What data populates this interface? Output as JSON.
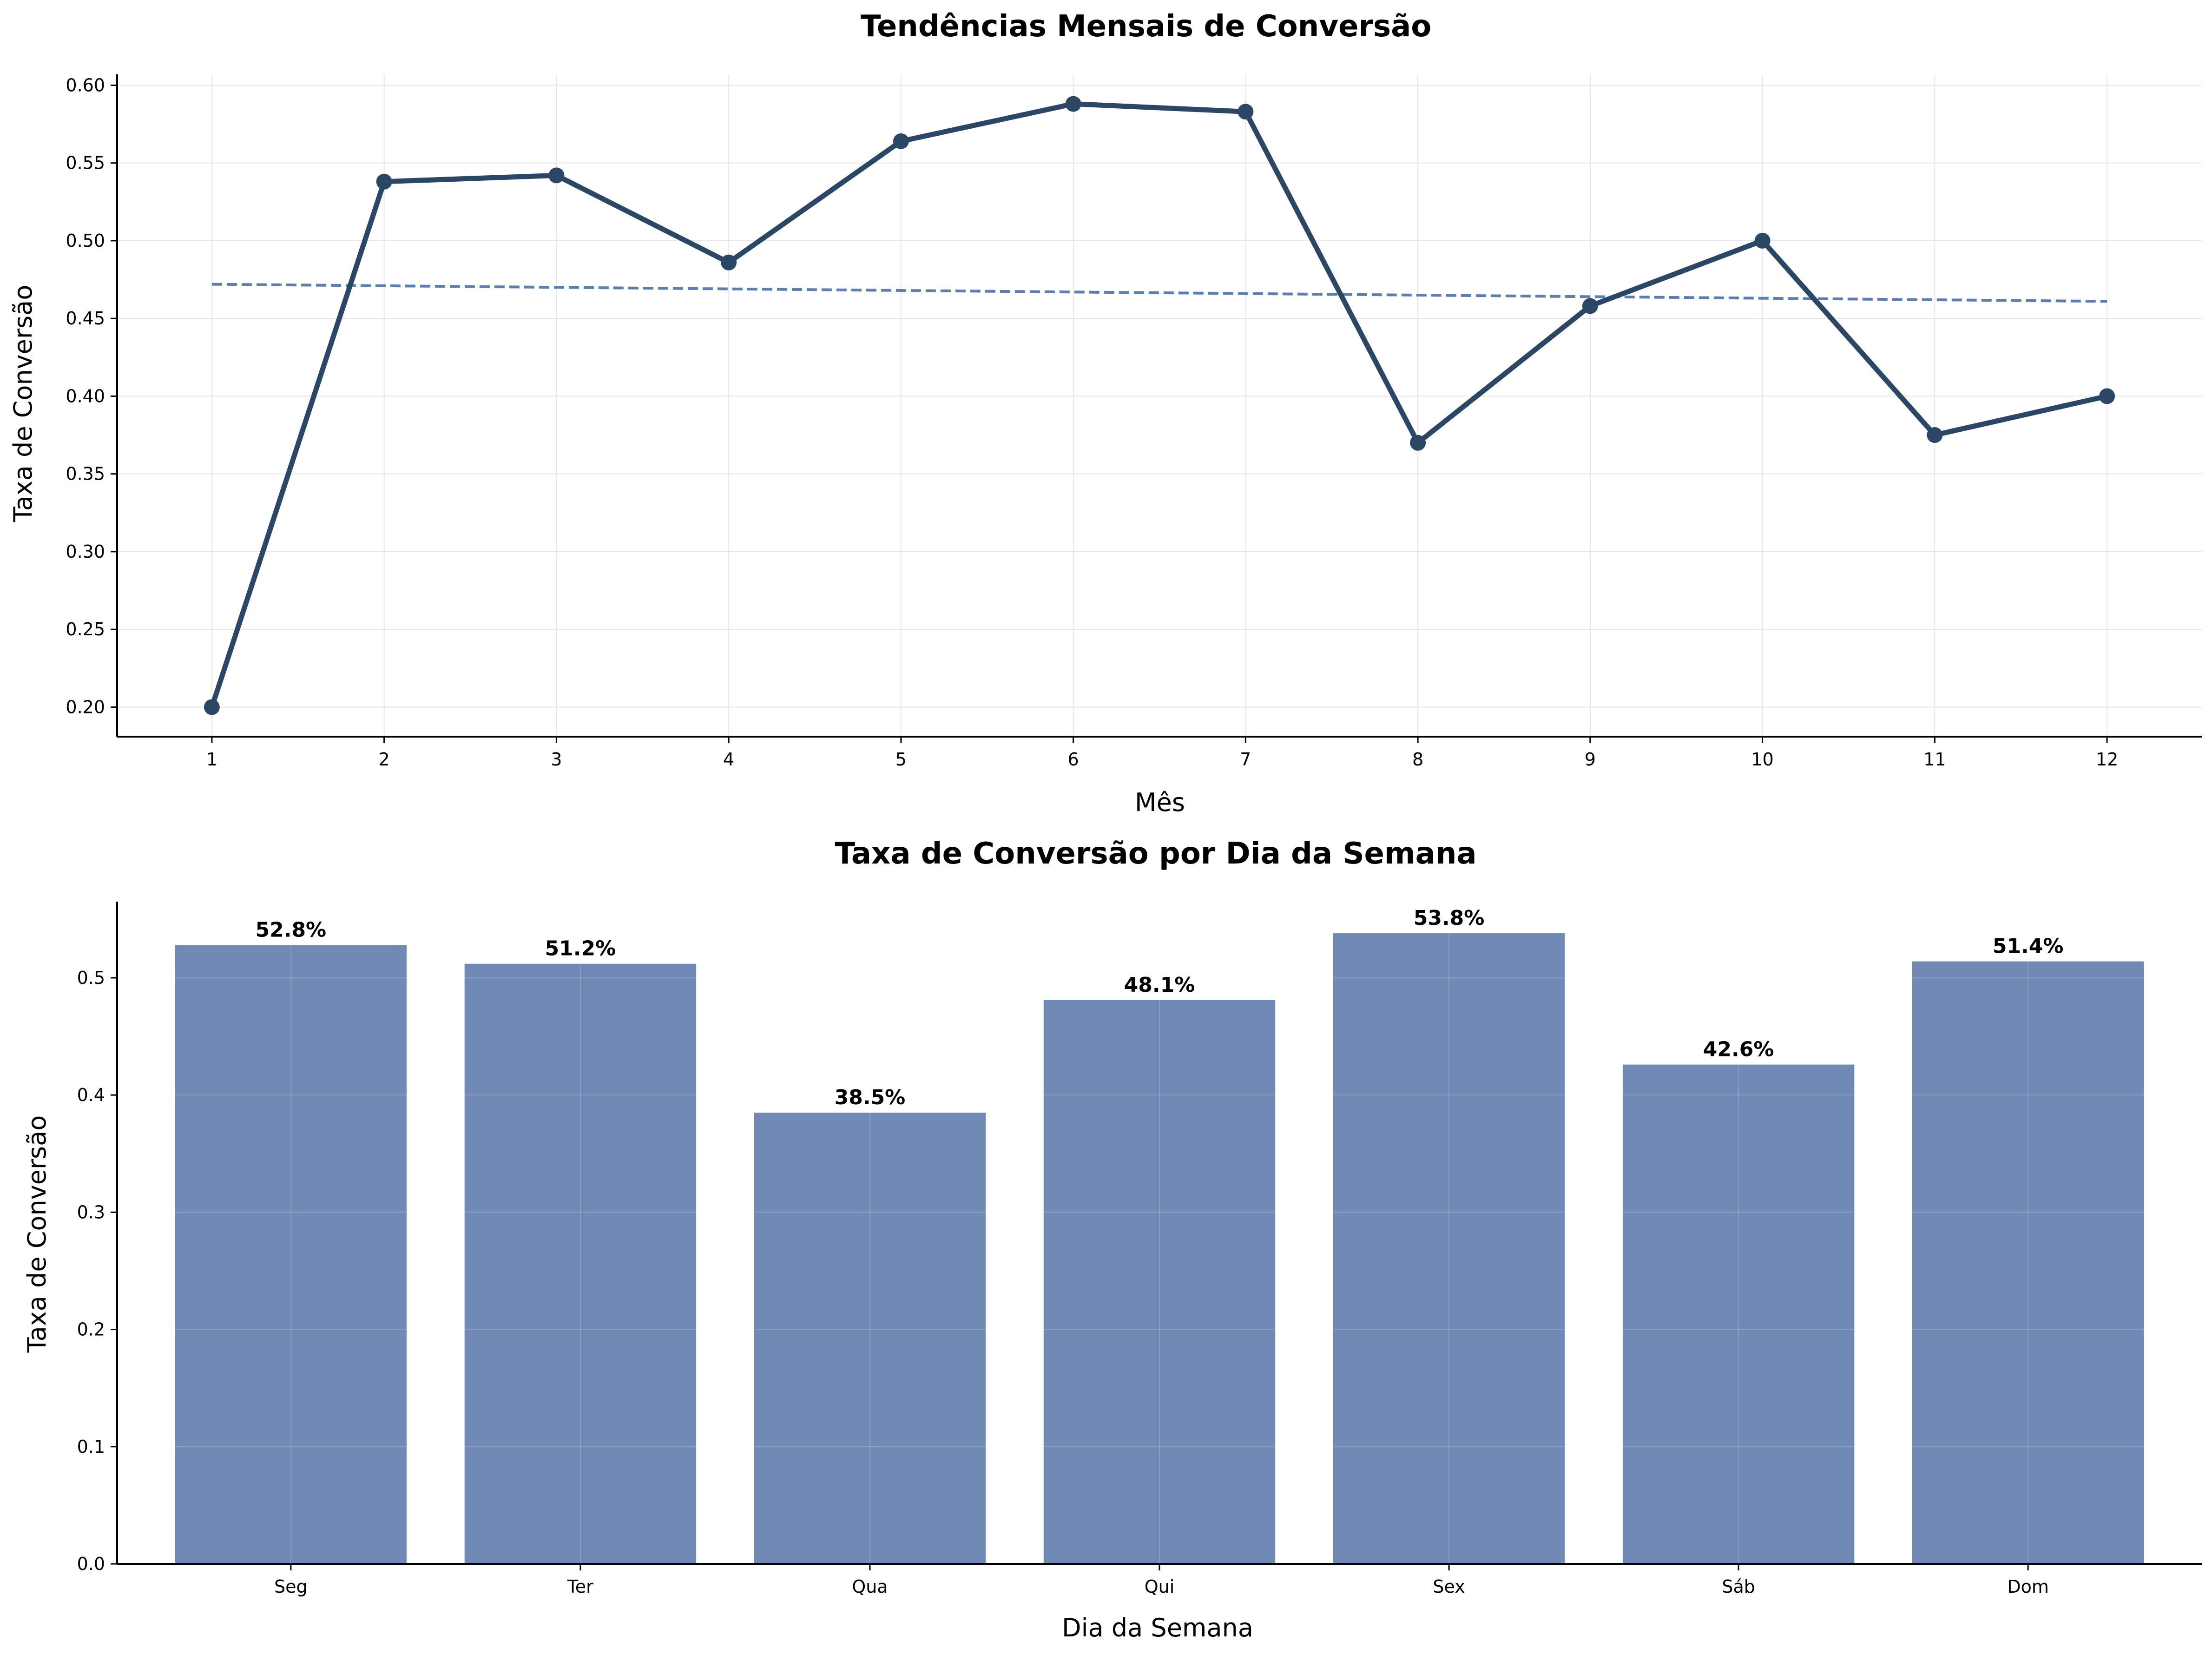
{
  "colors": {
    "line": "#2c4766",
    "trend": "#5b7fb0",
    "bar": "#7089b5",
    "grid": "#e6e6e6",
    "axis": "#000000"
  },
  "chart_data": [
    {
      "type": "line",
      "title": "Tendências Mensais de Conversão",
      "xlabel": "Mês",
      "ylabel": "Taxa de Conversão",
      "x": [
        1,
        2,
        3,
        4,
        5,
        6,
        7,
        8,
        9,
        10,
        11,
        12
      ],
      "series": [
        {
          "values": [
            0.2,
            0.538,
            0.542,
            0.486,
            0.564,
            0.588,
            0.583,
            0.37,
            0.458,
            0.5,
            0.375,
            0.4
          ],
          "style": "solid-with-markers"
        },
        {
          "values": [
            0.472,
            0.471,
            0.47,
            0.469,
            0.468,
            0.467,
            0.466,
            0.465,
            0.464,
            0.463,
            0.462,
            0.461
          ],
          "style": "dashed-trend"
        }
      ],
      "xlim": [
        0.45,
        12.55
      ],
      "ylim": [
        0.181,
        0.607
      ],
      "xticks": [
        "1",
        "2",
        "3",
        "4",
        "5",
        "6",
        "7",
        "8",
        "9",
        "10",
        "11",
        "12"
      ],
      "yticks": [
        "0.20",
        "0.25",
        "0.30",
        "0.35",
        "0.40",
        "0.45",
        "0.50",
        "0.55",
        "0.60"
      ],
      "grid": true,
      "legend": "none"
    },
    {
      "type": "bar",
      "title": "Taxa de Conversão por Dia da Semana",
      "xlabel": "Dia da Semana",
      "ylabel": "Taxa de Conversão",
      "categories": [
        "Seg",
        "Ter",
        "Qua",
        "Qui",
        "Sex",
        "Sáb",
        "Dom"
      ],
      "values": [
        0.528,
        0.512,
        0.385,
        0.481,
        0.538,
        0.426,
        0.514
      ],
      "data_labels": [
        "52.8%",
        "51.2%",
        "38.5%",
        "48.1%",
        "53.8%",
        "42.6%",
        "51.4%"
      ],
      "ylim": [
        0,
        0.565
      ],
      "yticks": [
        "0.0",
        "0.1",
        "0.2",
        "0.3",
        "0.4",
        "0.5"
      ],
      "grid": true,
      "legend": "none"
    }
  ]
}
